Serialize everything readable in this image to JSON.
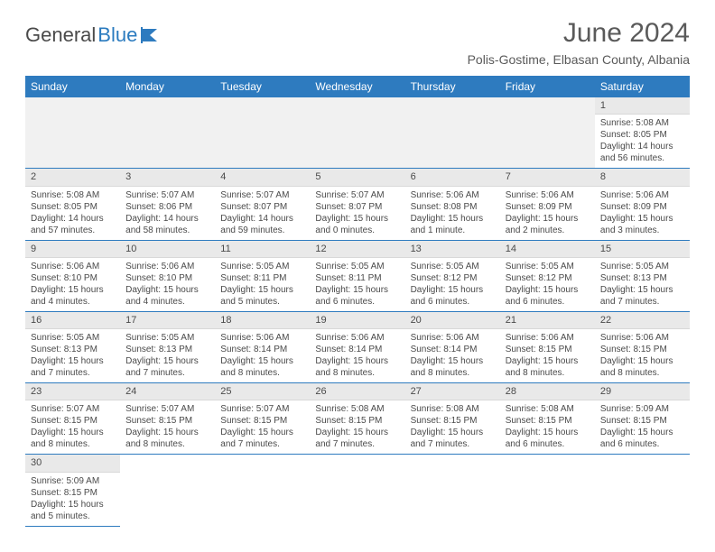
{
  "logo": {
    "text1": "General",
    "text2": "Blue"
  },
  "title": "June 2024",
  "location": "Polis-Gostime, Elbasan County, Albania",
  "colors": {
    "headerBg": "#2e7bbf",
    "headerText": "#ffffff",
    "dayNumBg": "#e9e9e9",
    "rowDivider": "#2e7bbf",
    "bodyText": "#4a4a4a",
    "pageBg": "#ffffff"
  },
  "weekdays": [
    "Sunday",
    "Monday",
    "Tuesday",
    "Wednesday",
    "Thursday",
    "Friday",
    "Saturday"
  ],
  "startWeekday": 6,
  "daysInMonth": 30,
  "days": {
    "1": {
      "sunrise": "5:08 AM",
      "sunset": "8:05 PM",
      "daylight": "14 hours and 56 minutes."
    },
    "2": {
      "sunrise": "5:08 AM",
      "sunset": "8:05 PM",
      "daylight": "14 hours and 57 minutes."
    },
    "3": {
      "sunrise": "5:07 AM",
      "sunset": "8:06 PM",
      "daylight": "14 hours and 58 minutes."
    },
    "4": {
      "sunrise": "5:07 AM",
      "sunset": "8:07 PM",
      "daylight": "14 hours and 59 minutes."
    },
    "5": {
      "sunrise": "5:07 AM",
      "sunset": "8:07 PM",
      "daylight": "15 hours and 0 minutes."
    },
    "6": {
      "sunrise": "5:06 AM",
      "sunset": "8:08 PM",
      "daylight": "15 hours and 1 minute."
    },
    "7": {
      "sunrise": "5:06 AM",
      "sunset": "8:09 PM",
      "daylight": "15 hours and 2 minutes."
    },
    "8": {
      "sunrise": "5:06 AM",
      "sunset": "8:09 PM",
      "daylight": "15 hours and 3 minutes."
    },
    "9": {
      "sunrise": "5:06 AM",
      "sunset": "8:10 PM",
      "daylight": "15 hours and 4 minutes."
    },
    "10": {
      "sunrise": "5:06 AM",
      "sunset": "8:10 PM",
      "daylight": "15 hours and 4 minutes."
    },
    "11": {
      "sunrise": "5:05 AM",
      "sunset": "8:11 PM",
      "daylight": "15 hours and 5 minutes."
    },
    "12": {
      "sunrise": "5:05 AM",
      "sunset": "8:11 PM",
      "daylight": "15 hours and 6 minutes."
    },
    "13": {
      "sunrise": "5:05 AM",
      "sunset": "8:12 PM",
      "daylight": "15 hours and 6 minutes."
    },
    "14": {
      "sunrise": "5:05 AM",
      "sunset": "8:12 PM",
      "daylight": "15 hours and 6 minutes."
    },
    "15": {
      "sunrise": "5:05 AM",
      "sunset": "8:13 PM",
      "daylight": "15 hours and 7 minutes."
    },
    "16": {
      "sunrise": "5:05 AM",
      "sunset": "8:13 PM",
      "daylight": "15 hours and 7 minutes."
    },
    "17": {
      "sunrise": "5:05 AM",
      "sunset": "8:13 PM",
      "daylight": "15 hours and 7 minutes."
    },
    "18": {
      "sunrise": "5:06 AM",
      "sunset": "8:14 PM",
      "daylight": "15 hours and 8 minutes."
    },
    "19": {
      "sunrise": "5:06 AM",
      "sunset": "8:14 PM",
      "daylight": "15 hours and 8 minutes."
    },
    "20": {
      "sunrise": "5:06 AM",
      "sunset": "8:14 PM",
      "daylight": "15 hours and 8 minutes."
    },
    "21": {
      "sunrise": "5:06 AM",
      "sunset": "8:15 PM",
      "daylight": "15 hours and 8 minutes."
    },
    "22": {
      "sunrise": "5:06 AM",
      "sunset": "8:15 PM",
      "daylight": "15 hours and 8 minutes."
    },
    "23": {
      "sunrise": "5:07 AM",
      "sunset": "8:15 PM",
      "daylight": "15 hours and 8 minutes."
    },
    "24": {
      "sunrise": "5:07 AM",
      "sunset": "8:15 PM",
      "daylight": "15 hours and 8 minutes."
    },
    "25": {
      "sunrise": "5:07 AM",
      "sunset": "8:15 PM",
      "daylight": "15 hours and 7 minutes."
    },
    "26": {
      "sunrise": "5:08 AM",
      "sunset": "8:15 PM",
      "daylight": "15 hours and 7 minutes."
    },
    "27": {
      "sunrise": "5:08 AM",
      "sunset": "8:15 PM",
      "daylight": "15 hours and 7 minutes."
    },
    "28": {
      "sunrise": "5:08 AM",
      "sunset": "8:15 PM",
      "daylight": "15 hours and 6 minutes."
    },
    "29": {
      "sunrise": "5:09 AM",
      "sunset": "8:15 PM",
      "daylight": "15 hours and 6 minutes."
    },
    "30": {
      "sunrise": "5:09 AM",
      "sunset": "8:15 PM",
      "daylight": "15 hours and 5 minutes."
    }
  },
  "labels": {
    "sunrise": "Sunrise:",
    "sunset": "Sunset:",
    "daylight": "Daylight:"
  }
}
